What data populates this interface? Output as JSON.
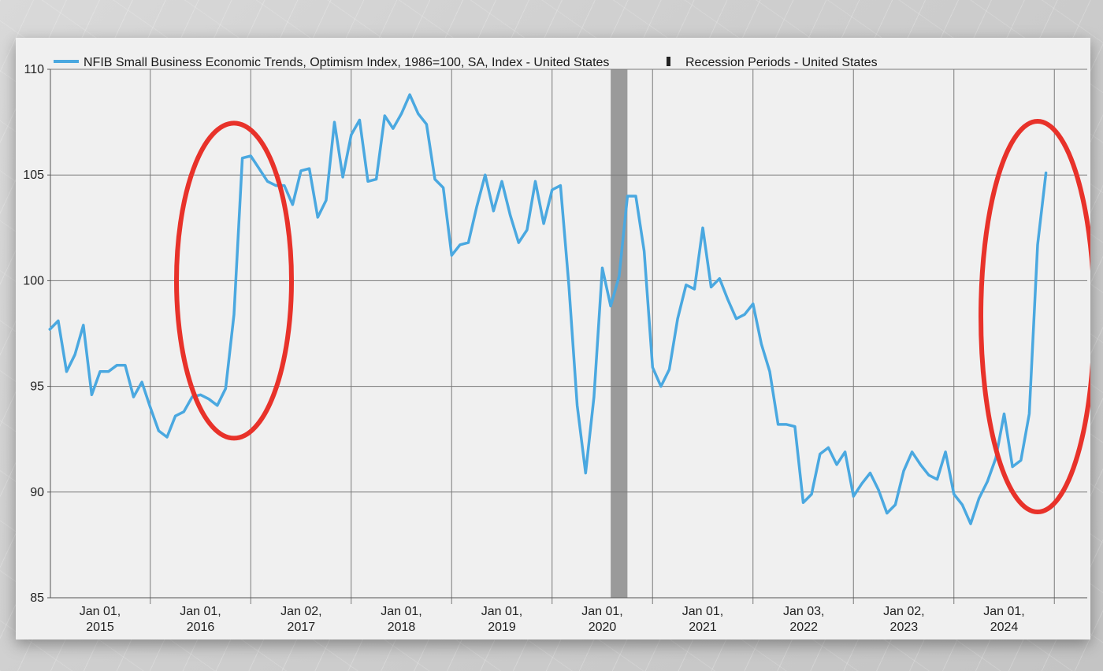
{
  "chart_data": {
    "type": "line",
    "title": "",
    "xlabel": "",
    "ylabel": "",
    "ylim": [
      85,
      110
    ],
    "yticks": [
      85,
      90,
      95,
      100,
      105,
      110
    ],
    "x_tick_labels": [
      {
        "date": "2015-01-01",
        "line1": "Jan 01,",
        "line2": "2015"
      },
      {
        "date": "2016-01-01",
        "line1": "Jan 01,",
        "line2": "2016"
      },
      {
        "date": "2017-01-02",
        "line1": "Jan 02,",
        "line2": "2017"
      },
      {
        "date": "2018-01-01",
        "line1": "Jan 01,",
        "line2": "2018"
      },
      {
        "date": "2019-01-01",
        "line1": "Jan 01,",
        "line2": "2019"
      },
      {
        "date": "2020-01-01",
        "line1": "Jan 01,",
        "line2": "2020"
      },
      {
        "date": "2021-01-01",
        "line1": "Jan 01,",
        "line2": "2021"
      },
      {
        "date": "2022-01-03",
        "line1": "Jan 03,",
        "line2": "2022"
      },
      {
        "date": "2023-01-02",
        "line1": "Jan 02,",
        "line2": "2023"
      },
      {
        "date": "2024-01-01",
        "line1": "Jan 01,",
        "line2": "2024"
      }
    ],
    "legend": {
      "placement": "top-left",
      "items": [
        {
          "label": "NFIB Small Business Economic Trends, Optimism Index, 1986=100, SA, Index - United States",
          "kind": "line"
        },
        {
          "label": "Recession Periods - United States",
          "kind": "bar"
        }
      ]
    },
    "recessions": [
      {
        "start": "2020-02",
        "end": "2020-04"
      }
    ],
    "series": [
      {
        "name": "NFIB Small Business Economic Trends, Optimism Index, 1986=100, SA, Index - United States",
        "color": "#4aa8e0",
        "points": [
          [
            "2014-07",
            97.7
          ],
          [
            "2014-08",
            98.1
          ],
          [
            "2014-09",
            95.7
          ],
          [
            "2014-10",
            96.5
          ],
          [
            "2014-11",
            97.9
          ],
          [
            "2014-12",
            94.6
          ],
          [
            "2015-01",
            95.7
          ],
          [
            "2015-02",
            95.7
          ],
          [
            "2015-03",
            96.0
          ],
          [
            "2015-04",
            96.0
          ],
          [
            "2015-05",
            94.5
          ],
          [
            "2015-06",
            95.2
          ],
          [
            "2015-07",
            94.0
          ],
          [
            "2015-08",
            92.9
          ],
          [
            "2015-09",
            92.6
          ],
          [
            "2015-10",
            93.6
          ],
          [
            "2015-11",
            93.8
          ],
          [
            "2015-12",
            94.5
          ],
          [
            "2016-01",
            94.6
          ],
          [
            "2016-02",
            94.4
          ],
          [
            "2016-03",
            94.1
          ],
          [
            "2016-04",
            94.9
          ],
          [
            "2016-05",
            98.4
          ],
          [
            "2016-06",
            105.8
          ],
          [
            "2016-07",
            105.9
          ],
          [
            "2016-08",
            105.3
          ],
          [
            "2016-09",
            104.7
          ],
          [
            "2016-10",
            104.5
          ],
          [
            "2016-11",
            104.5
          ],
          [
            "2016-12",
            103.6
          ],
          [
            "2017-01",
            105.2
          ],
          [
            "2017-02",
            105.3
          ],
          [
            "2017-03",
            103.0
          ],
          [
            "2017-04",
            103.8
          ],
          [
            "2017-05",
            107.5
          ],
          [
            "2017-06",
            104.9
          ],
          [
            "2017-07",
            106.9
          ],
          [
            "2017-08",
            107.6
          ],
          [
            "2017-09",
            104.7
          ],
          [
            "2017-10",
            104.8
          ],
          [
            "2017-11",
            107.8
          ],
          [
            "2017-12",
            107.2
          ],
          [
            "2018-01",
            107.9
          ],
          [
            "2018-02",
            108.8
          ],
          [
            "2018-03",
            107.9
          ],
          [
            "2018-04",
            107.4
          ],
          [
            "2018-05",
            104.8
          ],
          [
            "2018-06",
            104.4
          ],
          [
            "2018-07",
            101.2
          ],
          [
            "2018-08",
            101.7
          ],
          [
            "2018-09",
            101.8
          ],
          [
            "2018-10",
            103.5
          ],
          [
            "2018-11",
            105.0
          ],
          [
            "2018-12",
            103.3
          ],
          [
            "2019-01",
            104.7
          ],
          [
            "2019-02",
            103.1
          ],
          [
            "2019-03",
            101.8
          ],
          [
            "2019-04",
            102.4
          ],
          [
            "2019-05",
            104.7
          ],
          [
            "2019-06",
            102.7
          ],
          [
            "2019-07",
            104.3
          ],
          [
            "2019-08",
            104.5
          ],
          [
            "2019-09",
            99.8
          ],
          [
            "2019-10",
            94.1
          ],
          [
            "2019-11",
            90.9
          ],
          [
            "2019-12",
            94.5
          ],
          [
            "2020-01",
            100.6
          ],
          [
            "2020-02",
            98.8
          ],
          [
            "2020-03",
            100.2
          ],
          [
            "2020-04",
            104.0
          ],
          [
            "2020-05",
            104.0
          ],
          [
            "2020-06",
            101.4
          ],
          [
            "2020-07",
            95.9
          ],
          [
            "2020-08",
            95.0
          ],
          [
            "2020-09",
            95.8
          ],
          [
            "2020-10",
            98.2
          ],
          [
            "2020-11",
            99.8
          ],
          [
            "2020-12",
            99.6
          ],
          [
            "2021-01",
            102.5
          ],
          [
            "2021-02",
            99.7
          ],
          [
            "2021-03",
            100.1
          ],
          [
            "2021-04",
            99.1
          ],
          [
            "2021-05",
            98.2
          ],
          [
            "2021-06",
            98.4
          ],
          [
            "2021-07",
            98.9
          ],
          [
            "2021-08",
            97.0
          ],
          [
            "2021-09",
            95.7
          ],
          [
            "2021-10",
            93.2
          ],
          [
            "2021-11",
            93.2
          ],
          [
            "2021-12",
            93.1
          ],
          [
            "2022-01",
            89.5
          ],
          [
            "2022-02",
            89.9
          ],
          [
            "2022-03",
            91.8
          ],
          [
            "2022-04",
            92.1
          ],
          [
            "2022-05",
            91.3
          ],
          [
            "2022-06",
            91.9
          ],
          [
            "2022-07",
            89.8
          ],
          [
            "2022-08",
            90.4
          ],
          [
            "2022-09",
            90.9
          ],
          [
            "2022-10",
            90.1
          ],
          [
            "2022-11",
            89.0
          ],
          [
            "2022-12",
            89.4
          ],
          [
            "2023-01",
            91.0
          ],
          [
            "2023-02",
            91.9
          ],
          [
            "2023-03",
            91.3
          ],
          [
            "2023-04",
            90.8
          ],
          [
            "2023-05",
            90.6
          ],
          [
            "2023-06",
            91.9
          ],
          [
            "2023-07",
            89.9
          ],
          [
            "2023-08",
            89.4
          ],
          [
            "2023-09",
            88.5
          ],
          [
            "2023-10",
            89.7
          ],
          [
            "2023-11",
            90.5
          ],
          [
            "2023-12",
            91.6
          ],
          [
            "2024-01",
            93.7
          ],
          [
            "2024-02",
            91.2
          ],
          [
            "2024-03",
            91.5
          ],
          [
            "2024-04",
            93.7
          ],
          [
            "2024-05",
            101.7
          ],
          [
            "2024-06",
            105.1
          ]
        ]
      }
    ],
    "annotations": [
      {
        "type": "ellipse",
        "color": "#e8322a",
        "center_date": "2016-05",
        "center_value": 100.0
      },
      {
        "type": "ellipse",
        "color": "#e8322a",
        "center_date": "2024-05",
        "center_value": 98.3
      }
    ]
  },
  "colors": {
    "panel_background": "#f0f0f0",
    "grid": "#7a7a7a",
    "recession_fill": "#9a9a9a",
    "annotation": "#e8322a"
  }
}
